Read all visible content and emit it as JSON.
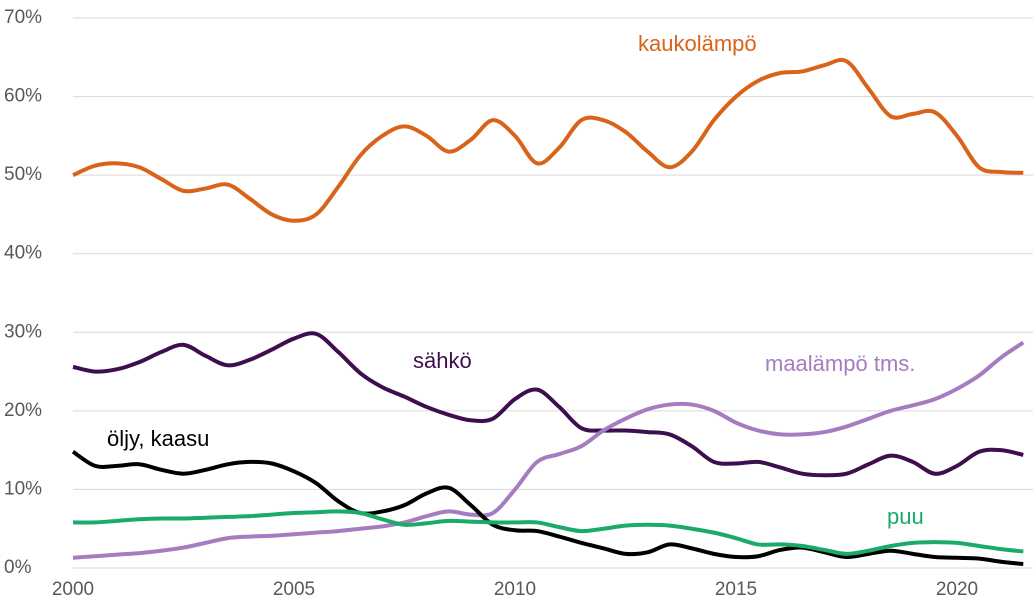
{
  "chart_data": {
    "type": "line",
    "x": [
      2000,
      2000.5,
      2001,
      2001.5,
      2002,
      2002.5,
      2003,
      2003.5,
      2004,
      2004.5,
      2005,
      2005.5,
      2006,
      2006.5,
      2007,
      2007.5,
      2008,
      2008.5,
      2009,
      2009.5,
      2010,
      2010.5,
      2011,
      2011.5,
      2012,
      2012.5,
      2013,
      2013.5,
      2014,
      2014.5,
      2015,
      2015.5,
      2016,
      2016.5,
      2017,
      2017.5,
      2018,
      2018.5,
      2019,
      2019.5,
      2020,
      2020.5,
      2021,
      2021.5
    ],
    "series": [
      {
        "name": "kaukolämpö",
        "color": "#d9631a",
        "values": [
          50,
          51.2,
          51.5,
          51,
          49.5,
          48,
          48.3,
          48.8,
          47,
          45,
          44.2,
          45,
          48.5,
          52.5,
          55,
          56.2,
          55,
          53,
          54.5,
          57,
          55,
          51.5,
          53.5,
          57,
          57,
          55.5,
          53,
          51,
          53,
          57,
          60,
          62,
          63,
          63.2,
          64,
          64.5,
          61,
          57.5,
          57.8,
          58,
          55,
          51,
          50.4,
          50.3
        ]
      },
      {
        "name": "sähkö",
        "color": "#3e0e4e",
        "values": [
          25.6,
          25,
          25.3,
          26.2,
          27.5,
          28.4,
          27,
          25.8,
          26.5,
          27.8,
          29.2,
          29.8,
          27.5,
          24.8,
          23,
          21.8,
          20.5,
          19.5,
          18.8,
          19,
          21.5,
          22.7,
          20.5,
          17.8,
          17.5,
          17.5,
          17.3,
          17,
          15.5,
          13.5,
          13.3,
          13.5,
          12.8,
          12,
          11.8,
          12,
          13.2,
          14.3,
          13.5,
          12,
          13,
          14.8,
          15,
          14.4
        ]
      },
      {
        "name": "maalämpö tms.",
        "color": "#a57cc0",
        "values": [
          1.3,
          1.5,
          1.7,
          1.9,
          2.2,
          2.6,
          3.2,
          3.8,
          4,
          4.1,
          4.3,
          4.5,
          4.7,
          5,
          5.3,
          5.8,
          6.6,
          7.2,
          6.8,
          7,
          10,
          13.5,
          14.5,
          15.5,
          17.5,
          19,
          20.2,
          20.8,
          20.8,
          20,
          18.5,
          17.5,
          17,
          17,
          17.3,
          18,
          19,
          20,
          20.7,
          21.5,
          22.8,
          24.5,
          26.8,
          28.7
        ]
      },
      {
        "name": "öljy, kaasu",
        "color": "#000000",
        "values": [
          14.8,
          13,
          13,
          13.2,
          12.5,
          12,
          12.5,
          13.2,
          13.5,
          13.3,
          12.3,
          10.8,
          8.5,
          7,
          7.2,
          8,
          9.5,
          10.2,
          8,
          5.5,
          4.8,
          4.7,
          4,
          3.2,
          2.5,
          1.8,
          2,
          3,
          2.5,
          1.8,
          1.4,
          1.5,
          2.3,
          2.6,
          2,
          1.4,
          1.8,
          2.2,
          1.8,
          1.4,
          1.3,
          1.2,
          0.8,
          0.5
        ]
      },
      {
        "name": "puu",
        "color": "#1aaa6a",
        "values": [
          5.8,
          5.8,
          6,
          6.2,
          6.3,
          6.3,
          6.4,
          6.5,
          6.6,
          6.8,
          7,
          7.1,
          7.2,
          7,
          6.2,
          5.5,
          5.7,
          6,
          5.9,
          5.8,
          5.8,
          5.8,
          5.2,
          4.7,
          5,
          5.4,
          5.5,
          5.4,
          5,
          4.5,
          3.8,
          3,
          3,
          2.8,
          2.3,
          1.8,
          2.2,
          2.8,
          3.2,
          3.3,
          3.2,
          2.8,
          2.4,
          2.1
        ]
      }
    ],
    "xlim": [
      2000,
      2021.6
    ],
    "xticks": [
      2000,
      2005,
      2010,
      2015,
      2020
    ],
    "ylim": [
      0,
      70
    ],
    "yticks": [
      {
        "value": 0,
        "label": "0%"
      },
      {
        "value": 10,
        "label": "10%"
      },
      {
        "value": 20,
        "label": "20%"
      },
      {
        "value": 30,
        "label": "30%"
      },
      {
        "value": 40,
        "label": "40%"
      },
      {
        "value": 50,
        "label": "50%"
      },
      {
        "value": 60,
        "label": "60%"
      },
      {
        "value": 70,
        "label": "70%"
      }
    ],
    "grid": true
  }
}
